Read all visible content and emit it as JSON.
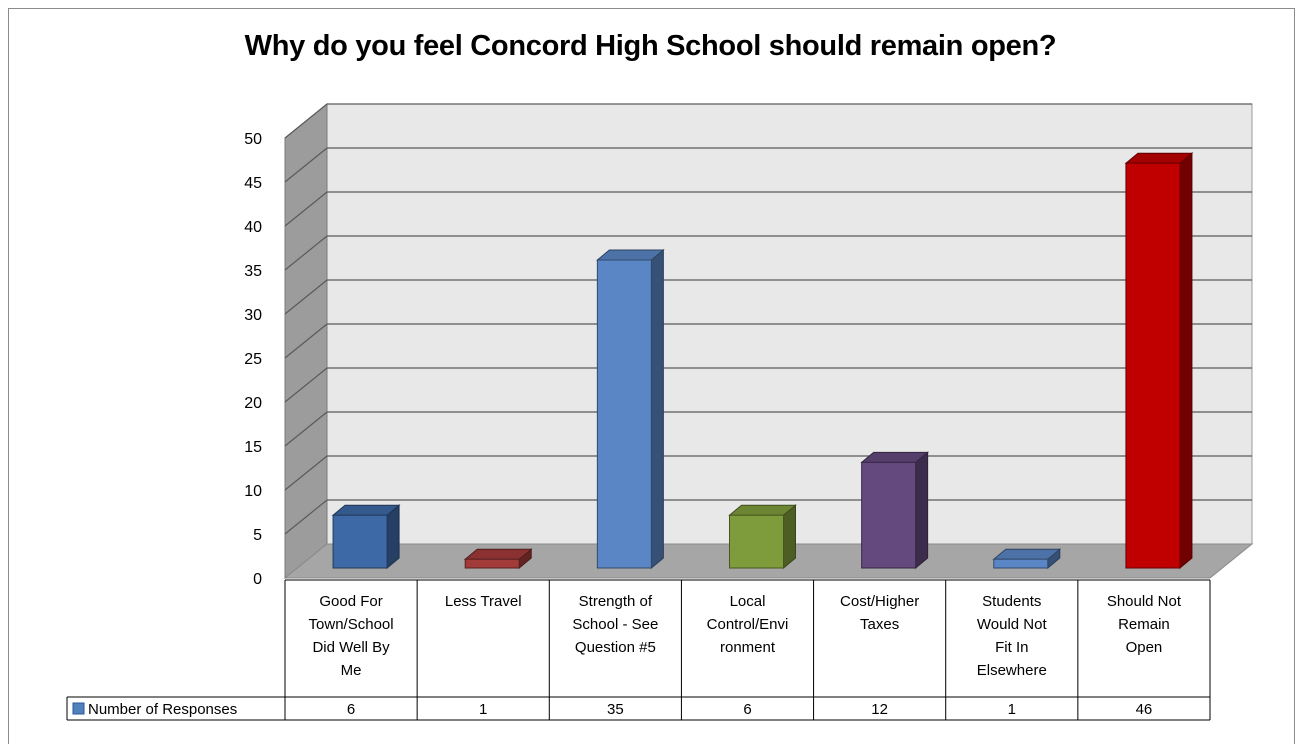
{
  "chart_data": {
    "type": "bar",
    "title": "Why do you feel Concord High School should remain open?",
    "categories": [
      "Good For Town/School Did Well By Me",
      "Less Travel",
      "Strength of School - See Question #5",
      "Local Control/Environment",
      "Cost/Higher Taxes",
      "Students Would Not Fit In Elsewhere",
      "Should Not Remain Open"
    ],
    "category_label_lines": [
      [
        "Good For",
        "Town/School",
        "Did Well By",
        "Me"
      ],
      [
        "Less Travel"
      ],
      [
        "Strength of",
        "School - See",
        "Question #5"
      ],
      [
        "Local",
        "Control/Envi",
        "ronment"
      ],
      [
        "Cost/Higher",
        "Taxes"
      ],
      [
        "Students",
        "Would Not",
        "Fit In",
        "Elsewhere"
      ],
      [
        "Should Not",
        "Remain",
        "Open"
      ]
    ],
    "series": [
      {
        "name": "Number of Responses",
        "values": [
          6,
          1,
          35,
          6,
          12,
          1,
          46
        ]
      }
    ],
    "bar_colors": [
      "#3d6aa6",
      "#a33a3a",
      "#5a86c5",
      "#7f9c3c",
      "#64497f",
      "#5a86c5",
      "#c00000"
    ],
    "ylim": [
      0,
      50
    ],
    "yticks": [
      0,
      5,
      10,
      15,
      20,
      25,
      30,
      35,
      40,
      45,
      50
    ],
    "xlabel": "",
    "ylabel": "",
    "grid": true,
    "legend": "data-table",
    "legend_swatch_color": "#4f81bd"
  }
}
